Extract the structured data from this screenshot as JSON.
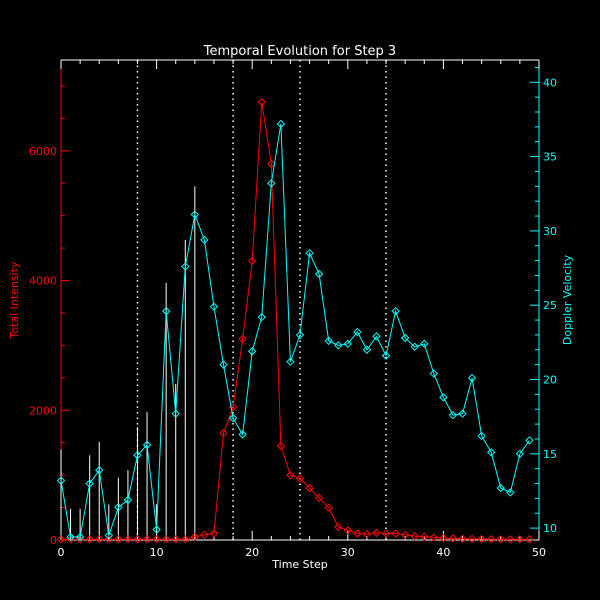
{
  "chart_data": {
    "type": "line",
    "title": "Temporal Evolution for Step 3",
    "xlabel": "Time Step",
    "ylabel_left": "Total Intensity",
    "ylabel_right": "Doppler Velocity",
    "xlim": [
      0,
      50
    ],
    "ylim_left": [
      0,
      7400
    ],
    "ylim_right": [
      9.2,
      41.5
    ],
    "x_ticks": [
      0,
      10,
      20,
      30,
      40,
      50
    ],
    "y_ticks_left": [
      0,
      2000,
      4000,
      6000
    ],
    "y_ticks_right": [
      10,
      15,
      20,
      25,
      30,
      35,
      40
    ],
    "vlines": [
      8,
      18,
      25,
      34
    ],
    "grid": false,
    "legend": "none",
    "colors": {
      "background": "#000000",
      "axes": "#ffffff",
      "intensity": "#ff0000",
      "velocity": "#00ffff",
      "error_bars": "#ffffff",
      "vlines": "#ffffff"
    },
    "series": [
      {
        "axis": "left",
        "marker": "diamond",
        "x": [
          0,
          1,
          2,
          3,
          4,
          5,
          6,
          7,
          8,
          9,
          10,
          11,
          12,
          13,
          14,
          15,
          16,
          17,
          18,
          19,
          20,
          21,
          22,
          23,
          24,
          25,
          26,
          27,
          28,
          29,
          30,
          31,
          32,
          33,
          34,
          35,
          36,
          37,
          38,
          39,
          40,
          41,
          42,
          43,
          44,
          45,
          46,
          47,
          48,
          49
        ],
        "values": [
          10,
          10,
          10,
          10,
          10,
          10,
          10,
          10,
          10,
          10,
          10,
          10,
          10,
          10,
          50,
          80,
          100,
          1650,
          2050,
          3100,
          4300,
          6750,
          5800,
          1450,
          1000,
          950,
          800,
          650,
          500,
          200,
          150,
          100,
          90,
          110,
          100,
          100,
          80,
          60,
          50,
          40,
          30,
          25,
          20,
          18,
          15,
          12,
          10,
          10,
          10,
          10
        ]
      },
      {
        "axis": "right",
        "marker": "diamond",
        "x": [
          0,
          1,
          2,
          3,
          4,
          5,
          6,
          7,
          8,
          9,
          10,
          11,
          12,
          13,
          14,
          15,
          16,
          17,
          18,
          19,
          20,
          21,
          22,
          23,
          24,
          25,
          26,
          27,
          28,
          29,
          30,
          31,
          32,
          33,
          34,
          35,
          36,
          37,
          38,
          39,
          40,
          41,
          42,
          43,
          44,
          45,
          46,
          47,
          48,
          49
        ],
        "values": [
          13.2,
          9.4,
          9.4,
          13.0,
          13.9,
          9.5,
          11.4,
          11.9,
          14.9,
          15.6,
          9.9,
          24.6,
          17.7,
          27.6,
          31.1,
          29.4,
          24.9,
          21.0,
          17.4,
          16.3,
          21.9,
          24.2,
          33.2,
          37.2,
          21.2,
          23.0,
          28.5,
          27.1,
          22.6,
          22.3,
          22.4,
          23.2,
          22.0,
          22.9,
          21.6,
          24.6,
          22.8,
          22.2,
          22.4,
          20.4,
          18.8,
          17.6,
          17.7,
          20.1,
          16.2,
          15.1,
          12.7,
          12.4,
          15.0,
          15.9
        ]
      }
    ],
    "error_bars": {
      "axis": "right",
      "x": [
        0,
        1,
        2,
        3,
        4,
        5,
        6,
        7,
        8,
        9,
        10,
        11,
        12,
        13,
        14
      ],
      "low": [
        9.2,
        9.2,
        9.2,
        9.2,
        9.2,
        9.2,
        9.2,
        9.2,
        9.2,
        9.2,
        9.2,
        9.2,
        9.2,
        9.2,
        9.2
      ],
      "high": [
        15.3,
        11.3,
        11.3,
        14.9,
        15.8,
        11.6,
        13.4,
        13.9,
        16.8,
        17.8,
        11.6,
        26.5,
        19.7,
        29.4,
        33.0
      ]
    }
  }
}
